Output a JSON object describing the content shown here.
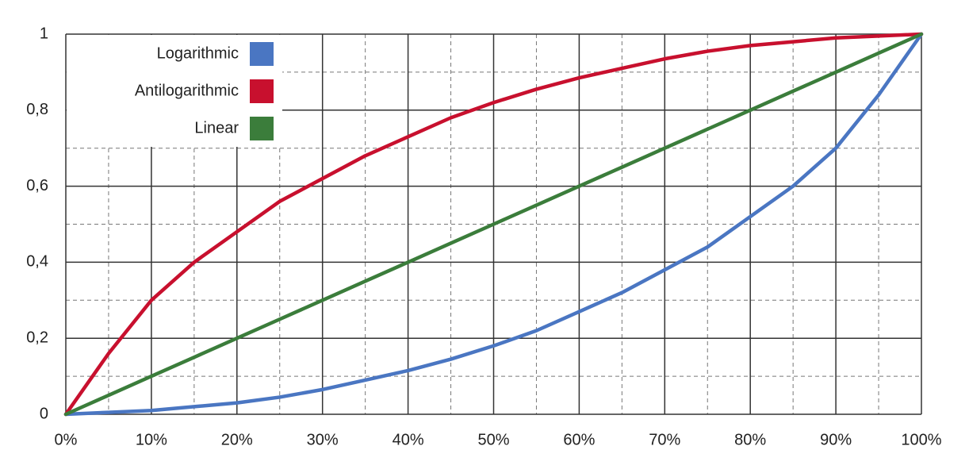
{
  "chart_data": {
    "type": "line",
    "x": [
      0,
      5,
      10,
      15,
      20,
      25,
      30,
      35,
      40,
      45,
      50,
      55,
      60,
      65,
      70,
      75,
      80,
      85,
      90,
      95,
      100
    ],
    "series": [
      {
        "name": "Logarithmic",
        "color": "#4a76c2",
        "values": [
          0,
          0.005,
          0.01,
          0.02,
          0.03,
          0.045,
          0.065,
          0.09,
          0.115,
          0.145,
          0.18,
          0.22,
          0.27,
          0.32,
          0.38,
          0.44,
          0.52,
          0.6,
          0.7,
          0.84,
          1
        ]
      },
      {
        "name": "Antilogarithmic",
        "color": "#c8102e",
        "values": [
          0,
          0.16,
          0.3,
          0.4,
          0.48,
          0.56,
          0.62,
          0.68,
          0.73,
          0.78,
          0.82,
          0.855,
          0.885,
          0.91,
          0.935,
          0.955,
          0.97,
          0.98,
          0.99,
          0.995,
          1
        ]
      },
      {
        "name": "Linear",
        "color": "#3b7d3b",
        "values": [
          0,
          0.05,
          0.1,
          0.15,
          0.2,
          0.25,
          0.3,
          0.35,
          0.4,
          0.45,
          0.5,
          0.55,
          0.6,
          0.65,
          0.7,
          0.75,
          0.8,
          0.85,
          0.9,
          0.95,
          1
        ]
      }
    ],
    "xlim": [
      0,
      100
    ],
    "xticks": [
      {
        "value": 0,
        "label": "0%"
      },
      {
        "value": 10,
        "label": "10%"
      },
      {
        "value": 20,
        "label": "20%"
      },
      {
        "value": 30,
        "label": "30%"
      },
      {
        "value": 40,
        "label": "40%"
      },
      {
        "value": 50,
        "label": "50%"
      },
      {
        "value": 60,
        "label": "60%"
      },
      {
        "value": 70,
        "label": "70%"
      },
      {
        "value": 80,
        "label": "80%"
      },
      {
        "value": 90,
        "label": "90%"
      },
      {
        "value": 100,
        "label": "100%"
      }
    ],
    "x_minor_ticks": [
      5,
      15,
      25,
      35,
      45,
      55,
      65,
      75,
      85,
      95
    ],
    "ylim": [
      0,
      1
    ],
    "yticks": [
      0,
      {
        "value": 0.2,
        "label": "0,2"
      },
      {
        "value": 0.4,
        "label": "0,4"
      },
      {
        "value": 0.6,
        "label": "0,6"
      },
      {
        "value": 0.8,
        "label": "0,8"
      },
      1
    ],
    "y_minor_ticks": [
      0.1,
      0.3,
      0.5,
      0.7,
      0.9
    ],
    "grid": true,
    "legend": "upper left"
  }
}
